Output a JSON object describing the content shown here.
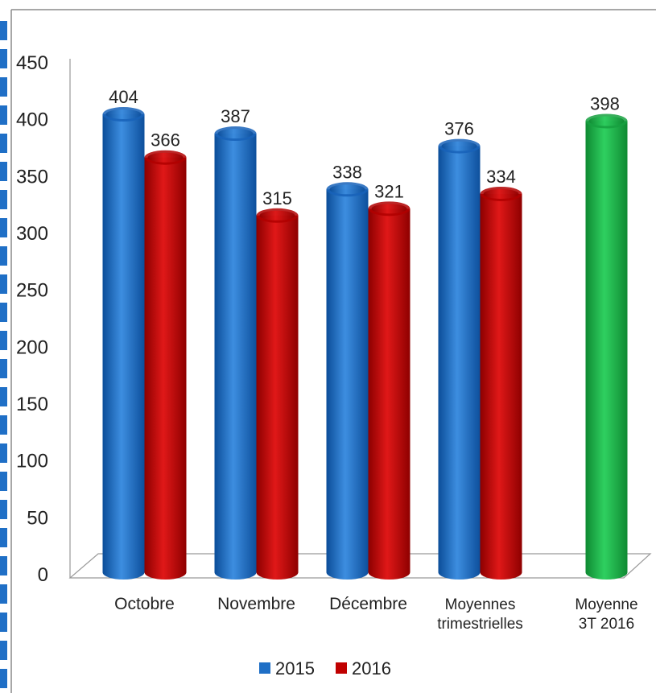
{
  "chart_data": {
    "type": "bar",
    "title": "",
    "xlabel": "",
    "ylabel": "",
    "ylim": [
      0,
      450
    ],
    "yticks": [
      0,
      50,
      100,
      150,
      200,
      250,
      300,
      350,
      400,
      450
    ],
    "categories": [
      [
        "Octobre"
      ],
      [
        "Novembre"
      ],
      [
        "Décembre"
      ],
      [
        "Moyennes",
        "trimestrielles"
      ],
      [
        "Moyenne",
        "3T 2016"
      ]
    ],
    "series": [
      {
        "name": "2015",
        "color": "#1f6fc6",
        "values": [
          404,
          387,
          338,
          376,
          null
        ]
      },
      {
        "name": "2016",
        "color": "#c00000",
        "values": [
          366,
          315,
          321,
          334,
          null
        ]
      }
    ],
    "extra_bar": {
      "category_index": 4,
      "value": 398,
      "color": "#1db04a"
    },
    "legend": {
      "position": "bottom"
    },
    "grid": false
  }
}
